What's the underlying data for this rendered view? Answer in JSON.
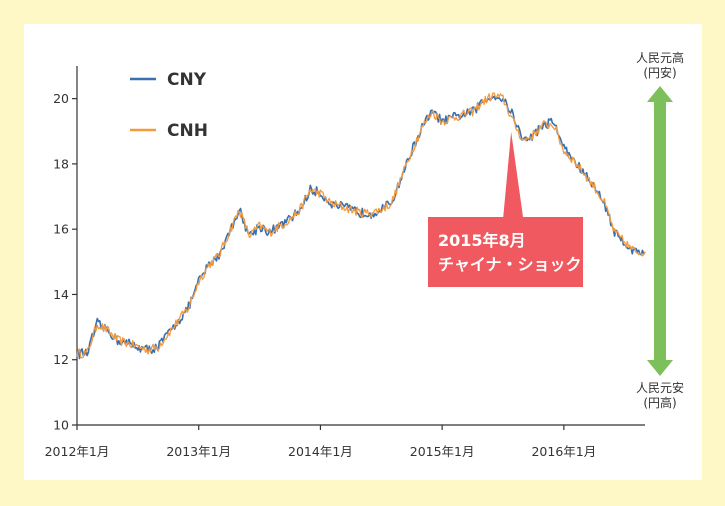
{
  "colors": {
    "background": "#fdf8c6",
    "cny": "#3a6fb0",
    "cnh": "#f39a3c",
    "callout": "#f0595f",
    "arrow": "#7dbf5a"
  },
  "side_labels": {
    "top": [
      "人民元高",
      "(円安)"
    ],
    "bottom": [
      "人民元安",
      "(円高)"
    ]
  },
  "callout": {
    "lines": [
      "2015年8月",
      "チャイナ・ショック"
    ],
    "points_to": "2015-08"
  },
  "chart_data": {
    "type": "line",
    "title": "",
    "xlabel": "",
    "ylabel": "",
    "ylim": [
      10,
      21
    ],
    "yticks": [
      10,
      12,
      14,
      16,
      18,
      20
    ],
    "xticks": [
      {
        "date": "2012-01",
        "label": "2012年1月"
      },
      {
        "date": "2013-01",
        "label": "2013年1月"
      },
      {
        "date": "2014-01",
        "label": "2014年1月"
      },
      {
        "date": "2015-01",
        "label": "2015年1月"
      },
      {
        "date": "2016-01",
        "label": "2016年1月"
      }
    ],
    "xrange": [
      "2012-01",
      "2016-09"
    ],
    "grid": false,
    "legend_position": "top-left",
    "x": [
      "2012-01",
      "2012-02",
      "2012-03",
      "2012-04",
      "2012-05",
      "2012-06",
      "2012-07",
      "2012-08",
      "2012-09",
      "2012-10",
      "2012-11",
      "2012-12",
      "2013-01",
      "2013-02",
      "2013-03",
      "2013-04",
      "2013-05",
      "2013-06",
      "2013-07",
      "2013-08",
      "2013-09",
      "2013-10",
      "2013-11",
      "2013-12",
      "2014-01",
      "2014-02",
      "2014-03",
      "2014-04",
      "2014-05",
      "2014-06",
      "2014-07",
      "2014-08",
      "2014-09",
      "2014-10",
      "2014-11",
      "2014-12",
      "2015-01",
      "2015-02",
      "2015-03",
      "2015-04",
      "2015-05",
      "2015-06",
      "2015-07",
      "2015-08",
      "2015-09",
      "2015-10",
      "2015-11",
      "2015-12",
      "2016-01",
      "2016-02",
      "2016-03",
      "2016-04",
      "2016-05",
      "2016-06",
      "2016-07",
      "2016-08",
      "2016-09"
    ],
    "series": [
      {
        "name": "CNY",
        "color": "#3a6fb0",
        "values": [
          12.2,
          12.2,
          13.1,
          12.9,
          12.6,
          12.5,
          12.4,
          12.3,
          12.4,
          12.8,
          13.2,
          13.6,
          14.4,
          14.9,
          15.2,
          15.9,
          16.6,
          15.8,
          16.1,
          15.9,
          16.1,
          16.3,
          16.6,
          17.2,
          17.1,
          16.8,
          16.7,
          16.6,
          16.5,
          16.5,
          16.6,
          16.8,
          17.6,
          18.4,
          19.1,
          19.6,
          19.3,
          19.4,
          19.5,
          19.6,
          19.9,
          20.1,
          20.0,
          19.5,
          18.7,
          18.9,
          19.2,
          19.3,
          18.5,
          18.1,
          17.7,
          17.3,
          16.8,
          15.9,
          15.6,
          15.3,
          15.3
        ]
      },
      {
        "name": "CNH",
        "color": "#f39a3c",
        "values": [
          12.2,
          12.2,
          13.1,
          12.9,
          12.6,
          12.5,
          12.4,
          12.3,
          12.4,
          12.8,
          13.2,
          13.6,
          14.4,
          14.9,
          15.2,
          15.9,
          16.6,
          15.8,
          16.1,
          15.9,
          16.1,
          16.3,
          16.6,
          17.2,
          17.1,
          16.8,
          16.7,
          16.6,
          16.5,
          16.5,
          16.6,
          16.8,
          17.6,
          18.4,
          19.1,
          19.6,
          19.3,
          19.4,
          19.5,
          19.6,
          19.9,
          20.1,
          20.0,
          19.3,
          18.7,
          18.9,
          19.2,
          19.2,
          18.4,
          18.1,
          17.7,
          17.3,
          16.8,
          15.9,
          15.6,
          15.3,
          15.3
        ]
      }
    ]
  }
}
